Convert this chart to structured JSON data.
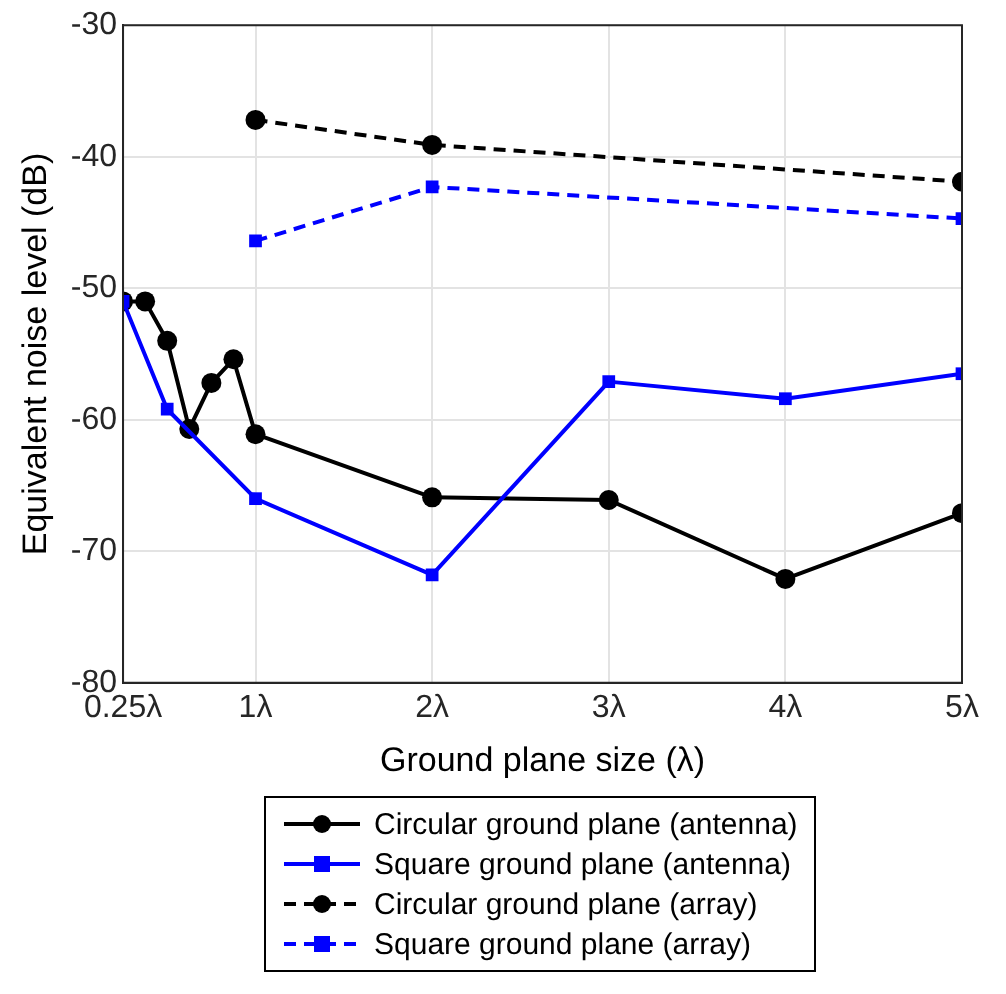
{
  "chart_data": {
    "type": "line",
    "xlabel": "Ground plane size (λ)",
    "ylabel": "Equivalent noise level (dB)",
    "xlim": [
      0.25,
      5
    ],
    "xticks": [
      {
        "value": 0.25,
        "label": "0.25λ"
      },
      {
        "value": 1,
        "label": "1λ"
      },
      {
        "value": 2,
        "label": "2λ"
      },
      {
        "value": 3,
        "label": "3λ"
      },
      {
        "value": 4,
        "label": "4λ"
      },
      {
        "value": 5,
        "label": "5λ"
      }
    ],
    "ylim": [
      -80,
      -30
    ],
    "yticks": [
      -80,
      -70,
      -60,
      -50,
      -40,
      -30
    ],
    "grid": true,
    "legend": "bottom",
    "series": [
      {
        "name": "Circular ground plane (antenna)",
        "color": "#000000",
        "marker": "circle",
        "line_style": "solid",
        "x": [
          0.25,
          0.375,
          0.5,
          0.625,
          0.75,
          0.875,
          1,
          2,
          3,
          4,
          5
        ],
        "values": [
          -51,
          -51,
          -54,
          -60.7,
          -57.2,
          -55.4,
          -61.1,
          -65.9,
          -66.1,
          -72.1,
          -67.1
        ]
      },
      {
        "name": "Square ground plane (antenna)",
        "color": "#0000ff",
        "marker": "square",
        "line_style": "solid",
        "x": [
          0.25,
          0.5,
          1,
          2,
          3,
          4,
          5
        ],
        "values": [
          -51,
          -59.2,
          -66,
          -71.8,
          -57.1,
          -58.4,
          -56.5
        ]
      },
      {
        "name": "Circular ground plane (array)",
        "color": "#000000",
        "marker": "circle",
        "line_style": "dashed",
        "x": [
          1,
          2,
          5
        ],
        "values": [
          -37.2,
          -39.1,
          -41.9
        ]
      },
      {
        "name": "Square ground plane (array)",
        "color": "#0000ff",
        "marker": "square",
        "line_style": "dashed",
        "x": [
          1,
          2,
          5
        ],
        "values": [
          -46.4,
          -42.3,
          -44.7
        ]
      }
    ]
  }
}
